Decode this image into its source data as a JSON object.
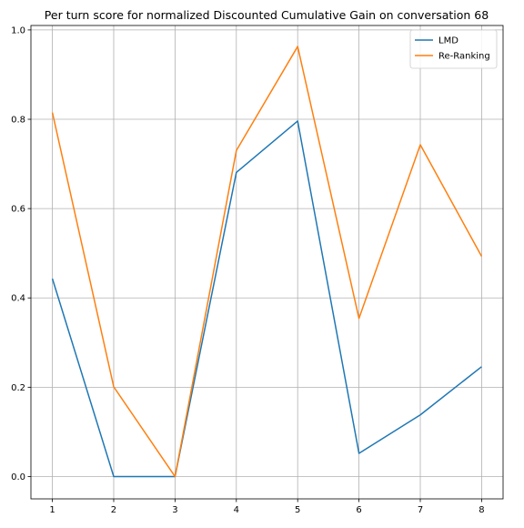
{
  "chart_data": {
    "type": "line",
    "title": "Per turn score for normalized Discounted Cumulative Gain on conversation 68",
    "xlabel": "",
    "ylabel": "",
    "x": [
      1,
      2,
      3,
      4,
      5,
      6,
      7,
      8
    ],
    "xticks": [
      "1",
      "2",
      "3",
      "4",
      "5",
      "6",
      "7",
      "8"
    ],
    "yticks": [
      "0.0",
      "0.2",
      "0.4",
      "0.6",
      "0.8",
      "1.0"
    ],
    "xlim": [
      0.65,
      8.35
    ],
    "ylim": [
      -0.05,
      1.01
    ],
    "grid": true,
    "legend_position": "top-right",
    "series": [
      {
        "name": "LMD",
        "color": "#1f77b4",
        "values": [
          0.443,
          0.0,
          0.0,
          0.681,
          0.796,
          0.052,
          0.138,
          0.246
        ]
      },
      {
        "name": "Re-Ranking",
        "color": "#ff7f0e",
        "values": [
          0.815,
          0.201,
          0.0,
          0.73,
          0.963,
          0.354,
          0.743,
          0.493
        ]
      }
    ]
  }
}
